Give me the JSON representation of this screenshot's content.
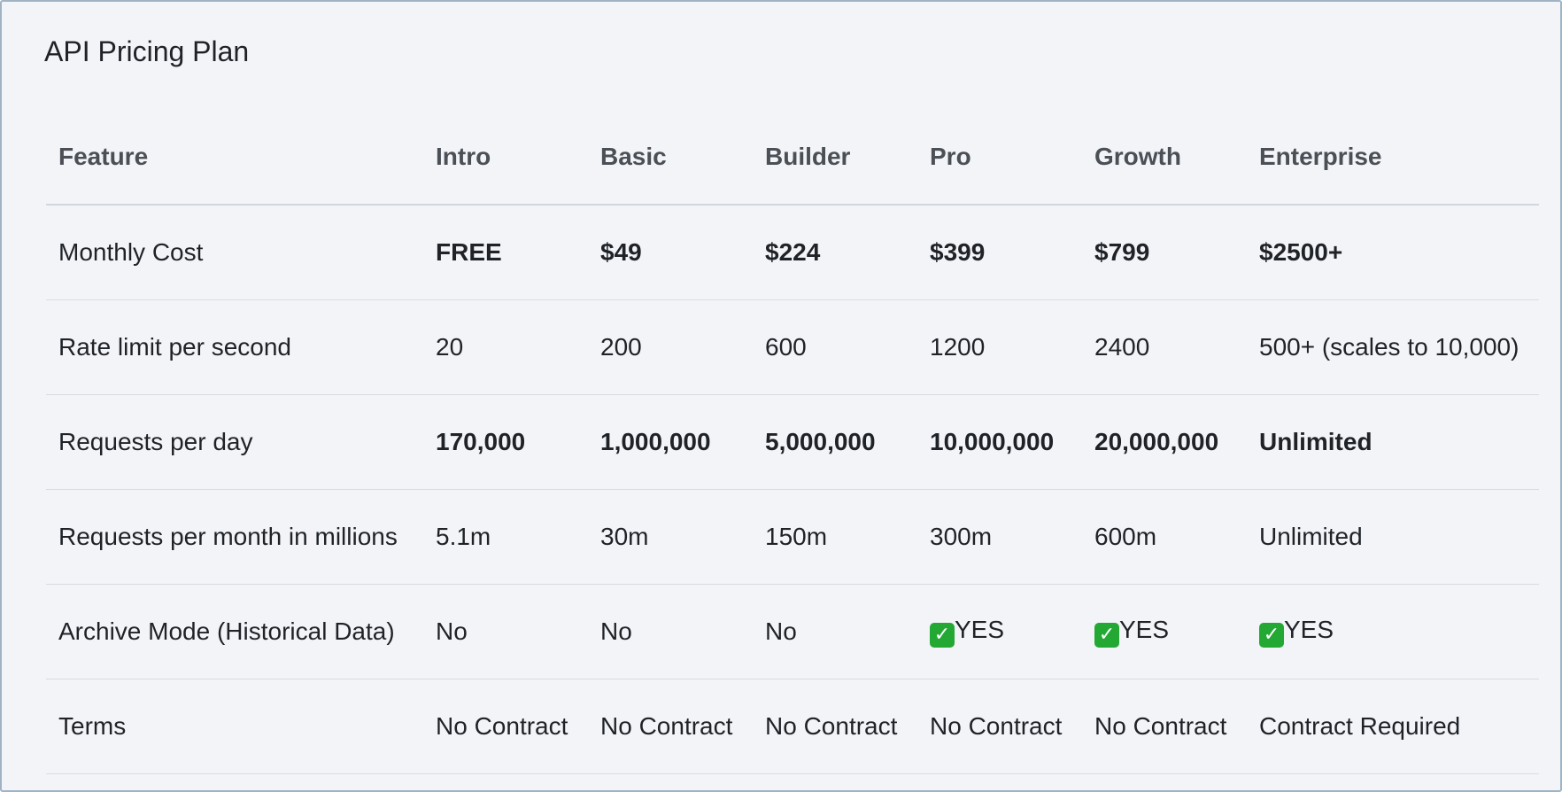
{
  "title": "API Pricing Plan",
  "columns": [
    "Feature",
    "Intro",
    "Basic",
    "Builder",
    "Pro",
    "Growth",
    "Enterprise"
  ],
  "rows": [
    {
      "feature": "Monthly Cost",
      "values": [
        "FREE",
        "$49",
        "$224",
        "$399",
        "$799",
        "$2500+"
      ]
    },
    {
      "feature": "Rate limit per second",
      "values": [
        "20",
        "200",
        "600",
        "1200",
        "2400",
        "500+ (scales to 10,000)"
      ]
    },
    {
      "feature": "Requests per day",
      "values": [
        "170,000",
        "1,000,000",
        "5,000,000",
        "10,000,000",
        "20,000,000",
        "Unlimited"
      ]
    },
    {
      "feature": "Requests per month in millions",
      "values": [
        "5.1m",
        "30m",
        "150m",
        "300m",
        "600m",
        "Unlimited"
      ]
    },
    {
      "feature": "Archive Mode (Historical Data)",
      "values": [
        "No",
        "No",
        "No",
        "YES",
        "YES",
        "YES"
      ]
    },
    {
      "feature": "Terms",
      "values": [
        "No Contract",
        "No Contract",
        "No Contract",
        "No Contract",
        "No Contract",
        "Contract Required"
      ]
    }
  ],
  "check_glyph": "✓",
  "colors": {
    "check_icon": "#22a833",
    "border": "#9fb3c4",
    "background": "#f3f4f8"
  }
}
